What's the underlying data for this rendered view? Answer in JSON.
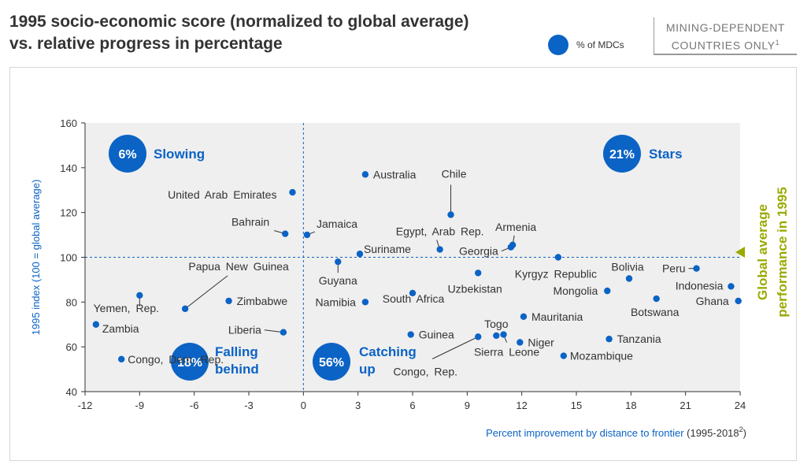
{
  "header": {
    "title": "1995 socio-economic score (normalized to global average) vs. relative progress in percentage",
    "legend_label": "% of MDCs",
    "mining_note": "MINING-DEPENDENT COUNTRIES ONLY",
    "mining_note_sup": "1"
  },
  "colors": {
    "accent": "#0b63c5",
    "side_label": "#9aaa00",
    "plot_bg": "#efefef",
    "text": "#333333"
  },
  "chart_data": {
    "type": "scatter",
    "xlabel": "Percent improvement  by distance to frontier",
    "xlabel_suffix": "(1995-2018",
    "xlabel_sup": "2",
    "xlabel_end": ")",
    "ylabel": "1995 index (100 = global average)",
    "xlim": [
      -12,
      24
    ],
    "ylim": [
      40,
      160
    ],
    "xticks": [
      -12,
      -9,
      -6,
      -3,
      0,
      3,
      6,
      9,
      12,
      15,
      18,
      21,
      24
    ],
    "yticks": [
      40,
      60,
      80,
      100,
      120,
      140,
      160
    ],
    "grid": false,
    "reference_lines": {
      "x": 0,
      "y": 100
    },
    "side_label": [
      "Global average",
      "performance in 1995"
    ],
    "quadrants": [
      {
        "name": "Slowing",
        "share": "6%"
      },
      {
        "name": "Stars",
        "share": "21%"
      },
      {
        "name": "Falling behind",
        "share": "18%"
      },
      {
        "name": "Catching up",
        "share": "56%"
      }
    ],
    "points": [
      {
        "label": "Australia",
        "x": 3.4,
        "y": 137
      },
      {
        "label": "United Arab Emirates",
        "x": -0.6,
        "y": 129
      },
      {
        "label": "Chile",
        "x": 8.1,
        "y": 119
      },
      {
        "label": "Bahrain",
        "x": -1.0,
        "y": 110.5
      },
      {
        "label": "Jamaica",
        "x": 0.2,
        "y": 110
      },
      {
        "label": "Egypt, Arab Rep.",
        "x": 7.5,
        "y": 103.5
      },
      {
        "label": "Suriname",
        "x": 3.1,
        "y": 101.5
      },
      {
        "label": "Armenia",
        "x": 11.5,
        "y": 105.5
      },
      {
        "label": "Georgia",
        "x": 11.4,
        "y": 104.5
      },
      {
        "label": "Guyana",
        "x": 1.9,
        "y": 98
      },
      {
        "label": "Kyrgyz Republic",
        "x": 14.0,
        "y": 100
      },
      {
        "label": "Uzbekistan",
        "x": 9.6,
        "y": 93
      },
      {
        "label": "Bolivia",
        "x": 17.9,
        "y": 90.5
      },
      {
        "label": "Peru",
        "x": 21.6,
        "y": 95
      },
      {
        "label": "Indonesia",
        "x": 23.5,
        "y": 87
      },
      {
        "label": "Mongolia",
        "x": 16.7,
        "y": 85
      },
      {
        "label": "Ghana",
        "x": 23.9,
        "y": 80.5
      },
      {
        "label": "Botswana",
        "x": 19.4,
        "y": 81.5
      },
      {
        "label": "Yemen, Rep.",
        "x": -9.0,
        "y": 83
      },
      {
        "label": "Papua New Guinea",
        "x": -6.5,
        "y": 77
      },
      {
        "label": "Zimbabwe",
        "x": -4.1,
        "y": 80.5
      },
      {
        "label": "Namibia",
        "x": 3.4,
        "y": 80
      },
      {
        "label": "South Africa",
        "x": 6.0,
        "y": 84
      },
      {
        "label": "Zambia",
        "x": -11.4,
        "y": 70
      },
      {
        "label": "Liberia",
        "x": -1.1,
        "y": 66.5
      },
      {
        "label": "Guinea",
        "x": 5.9,
        "y": 65.5
      },
      {
        "label": "Mauritania",
        "x": 12.1,
        "y": 73.5
      },
      {
        "label": "Togo",
        "x": 10.6,
        "y": 65
      },
      {
        "label": "Sierra Leone",
        "x": 11.0,
        "y": 65.5
      },
      {
        "label": "Niger",
        "x": 11.9,
        "y": 62
      },
      {
        "label": "Congo, Rep.",
        "x": 9.6,
        "y": 64.5
      },
      {
        "label": "Tanzania",
        "x": 16.8,
        "y": 63.5
      },
      {
        "label": "Mozambique",
        "x": 14.3,
        "y": 56
      },
      {
        "label": "Congo, Dem. Rep.",
        "x": -10.0,
        "y": 54.5
      }
    ]
  }
}
